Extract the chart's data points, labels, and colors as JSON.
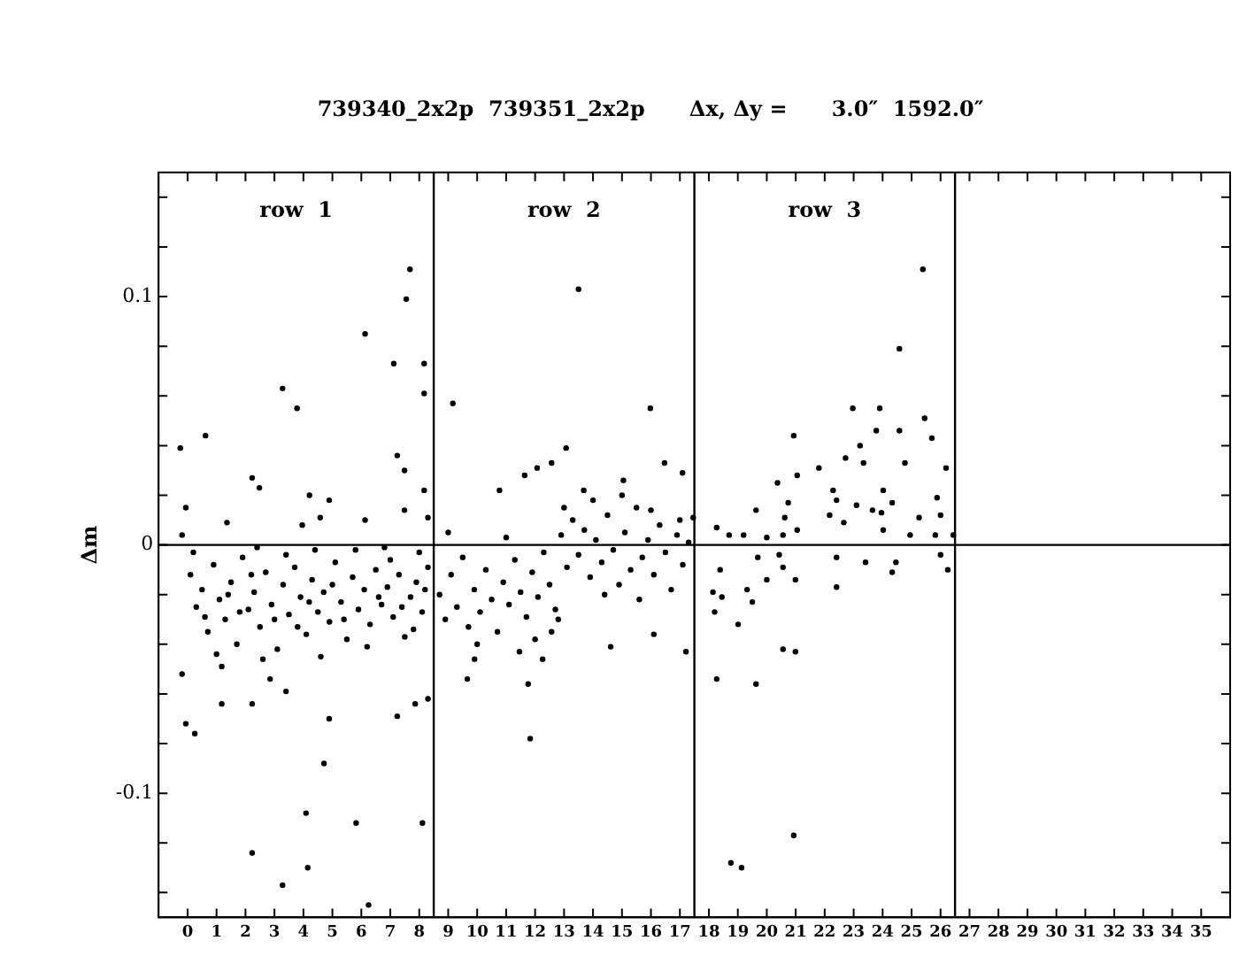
{
  "chart_data": {
    "type": "scatter",
    "title": "739340_2x2p  739351_2x2p      Δx, Δy =      3.0″  1592.0″",
    "ylabel": "Δm",
    "marker": "circle",
    "grid": false,
    "legend": false,
    "xlim": [
      -1,
      36
    ],
    "xticks": [
      0,
      1,
      2,
      3,
      4,
      5,
      6,
      7,
      8,
      9,
      10,
      11,
      12,
      13,
      14,
      15,
      16,
      17,
      18,
      19,
      20,
      21,
      22,
      23,
      24,
      25,
      26,
      27,
      28,
      29,
      30,
      31,
      32,
      33,
      34,
      35
    ],
    "ylim": [
      -0.15,
      0.15
    ],
    "yticks": [
      {
        "value": -0.14,
        "label": null
      },
      {
        "value": -0.12,
        "label": null
      },
      {
        "value": -0.1,
        "label": "-0.1"
      },
      {
        "value": -0.08,
        "label": null
      },
      {
        "value": -0.06,
        "label": null
      },
      {
        "value": -0.04,
        "label": null
      },
      {
        "value": -0.02,
        "label": null
      },
      {
        "value": 0,
        "label": "0"
      },
      {
        "value": 0.02,
        "label": null
      },
      {
        "value": 0.04,
        "label": null
      },
      {
        "value": 0.06,
        "label": null
      },
      {
        "value": 0.08,
        "label": null
      },
      {
        "value": 0.1,
        "label": "0.1"
      },
      {
        "value": 0.12,
        "label": null
      },
      {
        "value": 0.14,
        "label": null
      }
    ],
    "ref_lines": [
      {
        "axis": "y",
        "value": 0,
        "color": "#000000"
      },
      {
        "axis": "x",
        "value": 8.5,
        "color": "#000000"
      },
      {
        "axis": "x",
        "value": 17.5,
        "color": "#000000"
      },
      {
        "axis": "x",
        "value": 26.5,
        "color": "#000000"
      }
    ],
    "annotations": [
      "row  1",
      "row  2",
      "row  3"
    ],
    "series": [
      {
        "color": "#000000",
        "x": [
          7.55,
          6.13,
          7.12,
          8.17,
          8.17,
          3.28,
          3.78,
          0.62,
          -0.25,
          7.24,
          7.49,
          2.23,
          2.48,
          4.21,
          4.89,
          -0.06,
          8.17,
          1.36,
          6.13,
          7.49,
          8.3,
          -0.19,
          4.58,
          3.96,
          -0.19,
          1.18,
          2.85,
          3.4,
          1.18,
          2.23,
          4.89,
          7.24,
          7.86,
          8.3,
          -0.06,
          0.25,
          4.71,
          4.09,
          5.82,
          8.11,
          2.23,
          4.15,
          3.28,
          6.25,
          7.68,
          0.1,
          0.3,
          0.5,
          0.7,
          0.9,
          1.1,
          1.3,
          1.5,
          1.7,
          1.9,
          2.1,
          2.3,
          2.5,
          2.7,
          2.9,
          3.1,
          3.3,
          3.5,
          3.7,
          3.9,
          4.1,
          4.3,
          4.5,
          4.7,
          4.9,
          5.1,
          5.3,
          5.5,
          5.7,
          5.9,
          6.1,
          6.3,
          6.5,
          6.7,
          6.9,
          7.1,
          7.3,
          7.5,
          7.7,
          7.9,
          8.1,
          8.3,
          0.2,
          0.6,
          1.0,
          1.4,
          1.8,
          2.2,
          2.6,
          3.0,
          3.4,
          3.8,
          4.2,
          4.6,
          5.0,
          5.4,
          5.8,
          6.2,
          6.6,
          7.0,
          7.4,
          7.8,
          8.2,
          8.0,
          6.8,
          4.4,
          2.4,
          13.5,
          9.16,
          15.98,
          13.07,
          12.57,
          12.07,
          16.47,
          17.09,
          11.64,
          10.77,
          13.68,
          15.05,
          9.91,
          11.46,
          12.26,
          14.61,
          17.21,
          9.66,
          11.76,
          11.83,
          12.57,
          16.1,
          8.7,
          8.9,
          9.1,
          9.3,
          9.5,
          9.7,
          9.9,
          10.1,
          10.3,
          10.5,
          10.7,
          10.9,
          11.1,
          11.3,
          11.5,
          11.7,
          11.9,
          12.1,
          12.3,
          12.5,
          12.7,
          12.9,
          13.1,
          13.3,
          13.5,
          13.7,
          13.9,
          14.1,
          14.3,
          14.5,
          14.7,
          14.9,
          15.1,
          15.3,
          15.5,
          15.7,
          15.9,
          16.1,
          16.3,
          16.5,
          16.7,
          16.9,
          17.1,
          17.3,
          9.0,
          10.0,
          11.0,
          12.0,
          13.0,
          14.0,
          15.0,
          16.0,
          17.0,
          14.4,
          15.6,
          12.8,
          25.39,
          24.58,
          22.97,
          23.9,
          25.45,
          20.93,
          23.78,
          24.58,
          25.7,
          23.22,
          23.34,
          21.8,
          24.77,
          26.19,
          21.05,
          20.37,
          22.29,
          24.02,
          22.72,
          25.88,
          22.41,
          20.74,
          23.1,
          23.65,
          24.33,
          19.63,
          17.46,
          25.26,
          22.17,
          20.62,
          23.96,
          26.0,
          22.66,
          18.27,
          18.7,
          19.2,
          20.0,
          21.05,
          24.02,
          24.95,
          25.82,
          26.44,
          20.56,
          20.43,
          22.41,
          23.41,
          24.46,
          19.69,
          26.0,
          26.25,
          18.39,
          20.56,
          24.33,
          20.0,
          20.99,
          22.41,
          18.14,
          18.45,
          19.32,
          19.5,
          18.2,
          19.01,
          20.56,
          20.99,
          18.27,
          19.63,
          20.93,
          18.76,
          19.13
        ],
        "values": [
          0.099,
          0.085,
          0.073,
          0.073,
          0.061,
          0.063,
          0.055,
          0.044,
          0.039,
          0.036,
          0.03,
          0.027,
          0.023,
          0.02,
          0.018,
          0.015,
          0.022,
          0.009,
          0.01,
          0.014,
          0.011,
          0.004,
          0.011,
          0.008,
          -0.052,
          -0.049,
          -0.054,
          -0.059,
          -0.064,
          -0.064,
          -0.07,
          -0.069,
          -0.064,
          -0.062,
          -0.072,
          -0.076,
          -0.088,
          -0.108,
          -0.112,
          -0.112,
          -0.124,
          -0.13,
          -0.137,
          -0.145,
          0.111,
          -0.012,
          -0.025,
          -0.018,
          -0.035,
          -0.008,
          -0.022,
          -0.03,
          -0.015,
          -0.04,
          -0.005,
          -0.026,
          -0.019,
          -0.033,
          -0.011,
          -0.024,
          -0.042,
          -0.016,
          -0.028,
          -0.009,
          -0.021,
          -0.036,
          -0.014,
          -0.027,
          -0.019,
          -0.031,
          -0.007,
          -0.023,
          -0.038,
          -0.013,
          -0.026,
          -0.018,
          -0.032,
          -0.01,
          -0.024,
          -0.017,
          -0.029,
          -0.012,
          -0.037,
          -0.021,
          -0.015,
          -0.027,
          -0.009,
          -0.003,
          -0.029,
          -0.044,
          -0.02,
          -0.027,
          -0.012,
          -0.046,
          -0.03,
          -0.004,
          -0.033,
          -0.023,
          -0.045,
          -0.016,
          -0.03,
          -0.002,
          -0.041,
          -0.021,
          -0.006,
          -0.025,
          -0.034,
          -0.018,
          -0.003,
          -0.001,
          -0.002,
          -0.001,
          0.103,
          0.057,
          0.055,
          0.039,
          0.033,
          0.031,
          0.033,
          0.029,
          0.028,
          0.022,
          0.022,
          0.026,
          -0.046,
          -0.043,
          -0.046,
          -0.041,
          -0.043,
          -0.054,
          -0.056,
          -0.078,
          -0.035,
          -0.036,
          -0.02,
          -0.03,
          -0.012,
          -0.025,
          -0.005,
          -0.033,
          -0.018,
          -0.027,
          -0.01,
          -0.022,
          -0.035,
          -0.015,
          -0.024,
          -0.006,
          -0.019,
          -0.029,
          -0.011,
          -0.021,
          -0.003,
          -0.016,
          -0.026,
          0.004,
          -0.009,
          0.01,
          -0.004,
          0.006,
          -0.013,
          0.002,
          -0.007,
          0.012,
          -0.002,
          -0.016,
          0.005,
          -0.01,
          0.015,
          -0.005,
          0.002,
          -0.012,
          0.008,
          -0.003,
          -0.018,
          0.004,
          -0.008,
          0.001,
          0.005,
          -0.04,
          0.003,
          -0.038,
          0.015,
          0.018,
          0.02,
          0.014,
          0.01,
          -0.02,
          -0.022,
          -0.03,
          0.111,
          0.079,
          0.055,
          0.055,
          0.051,
          0.044,
          0.046,
          0.046,
          0.043,
          0.04,
          0.033,
          0.031,
          0.033,
          0.031,
          0.028,
          0.025,
          0.022,
          0.022,
          0.035,
          0.019,
          0.018,
          0.017,
          0.016,
          0.014,
          0.017,
          0.014,
          0.011,
          0.011,
          0.012,
          0.011,
          0.013,
          0.012,
          0.009,
          0.007,
          0.004,
          0.004,
          0.003,
          0.006,
          0.006,
          0.004,
          0.004,
          0.004,
          0.004,
          -0.004,
          -0.005,
          -0.007,
          -0.007,
          -0.005,
          -0.004,
          -0.01,
          -0.01,
          -0.009,
          -0.011,
          -0.014,
          -0.014,
          -0.017,
          -0.019,
          -0.021,
          -0.018,
          -0.023,
          -0.027,
          -0.032,
          -0.042,
          -0.043,
          -0.054,
          -0.056,
          -0.117,
          -0.128,
          -0.13
        ]
      }
    ]
  }
}
